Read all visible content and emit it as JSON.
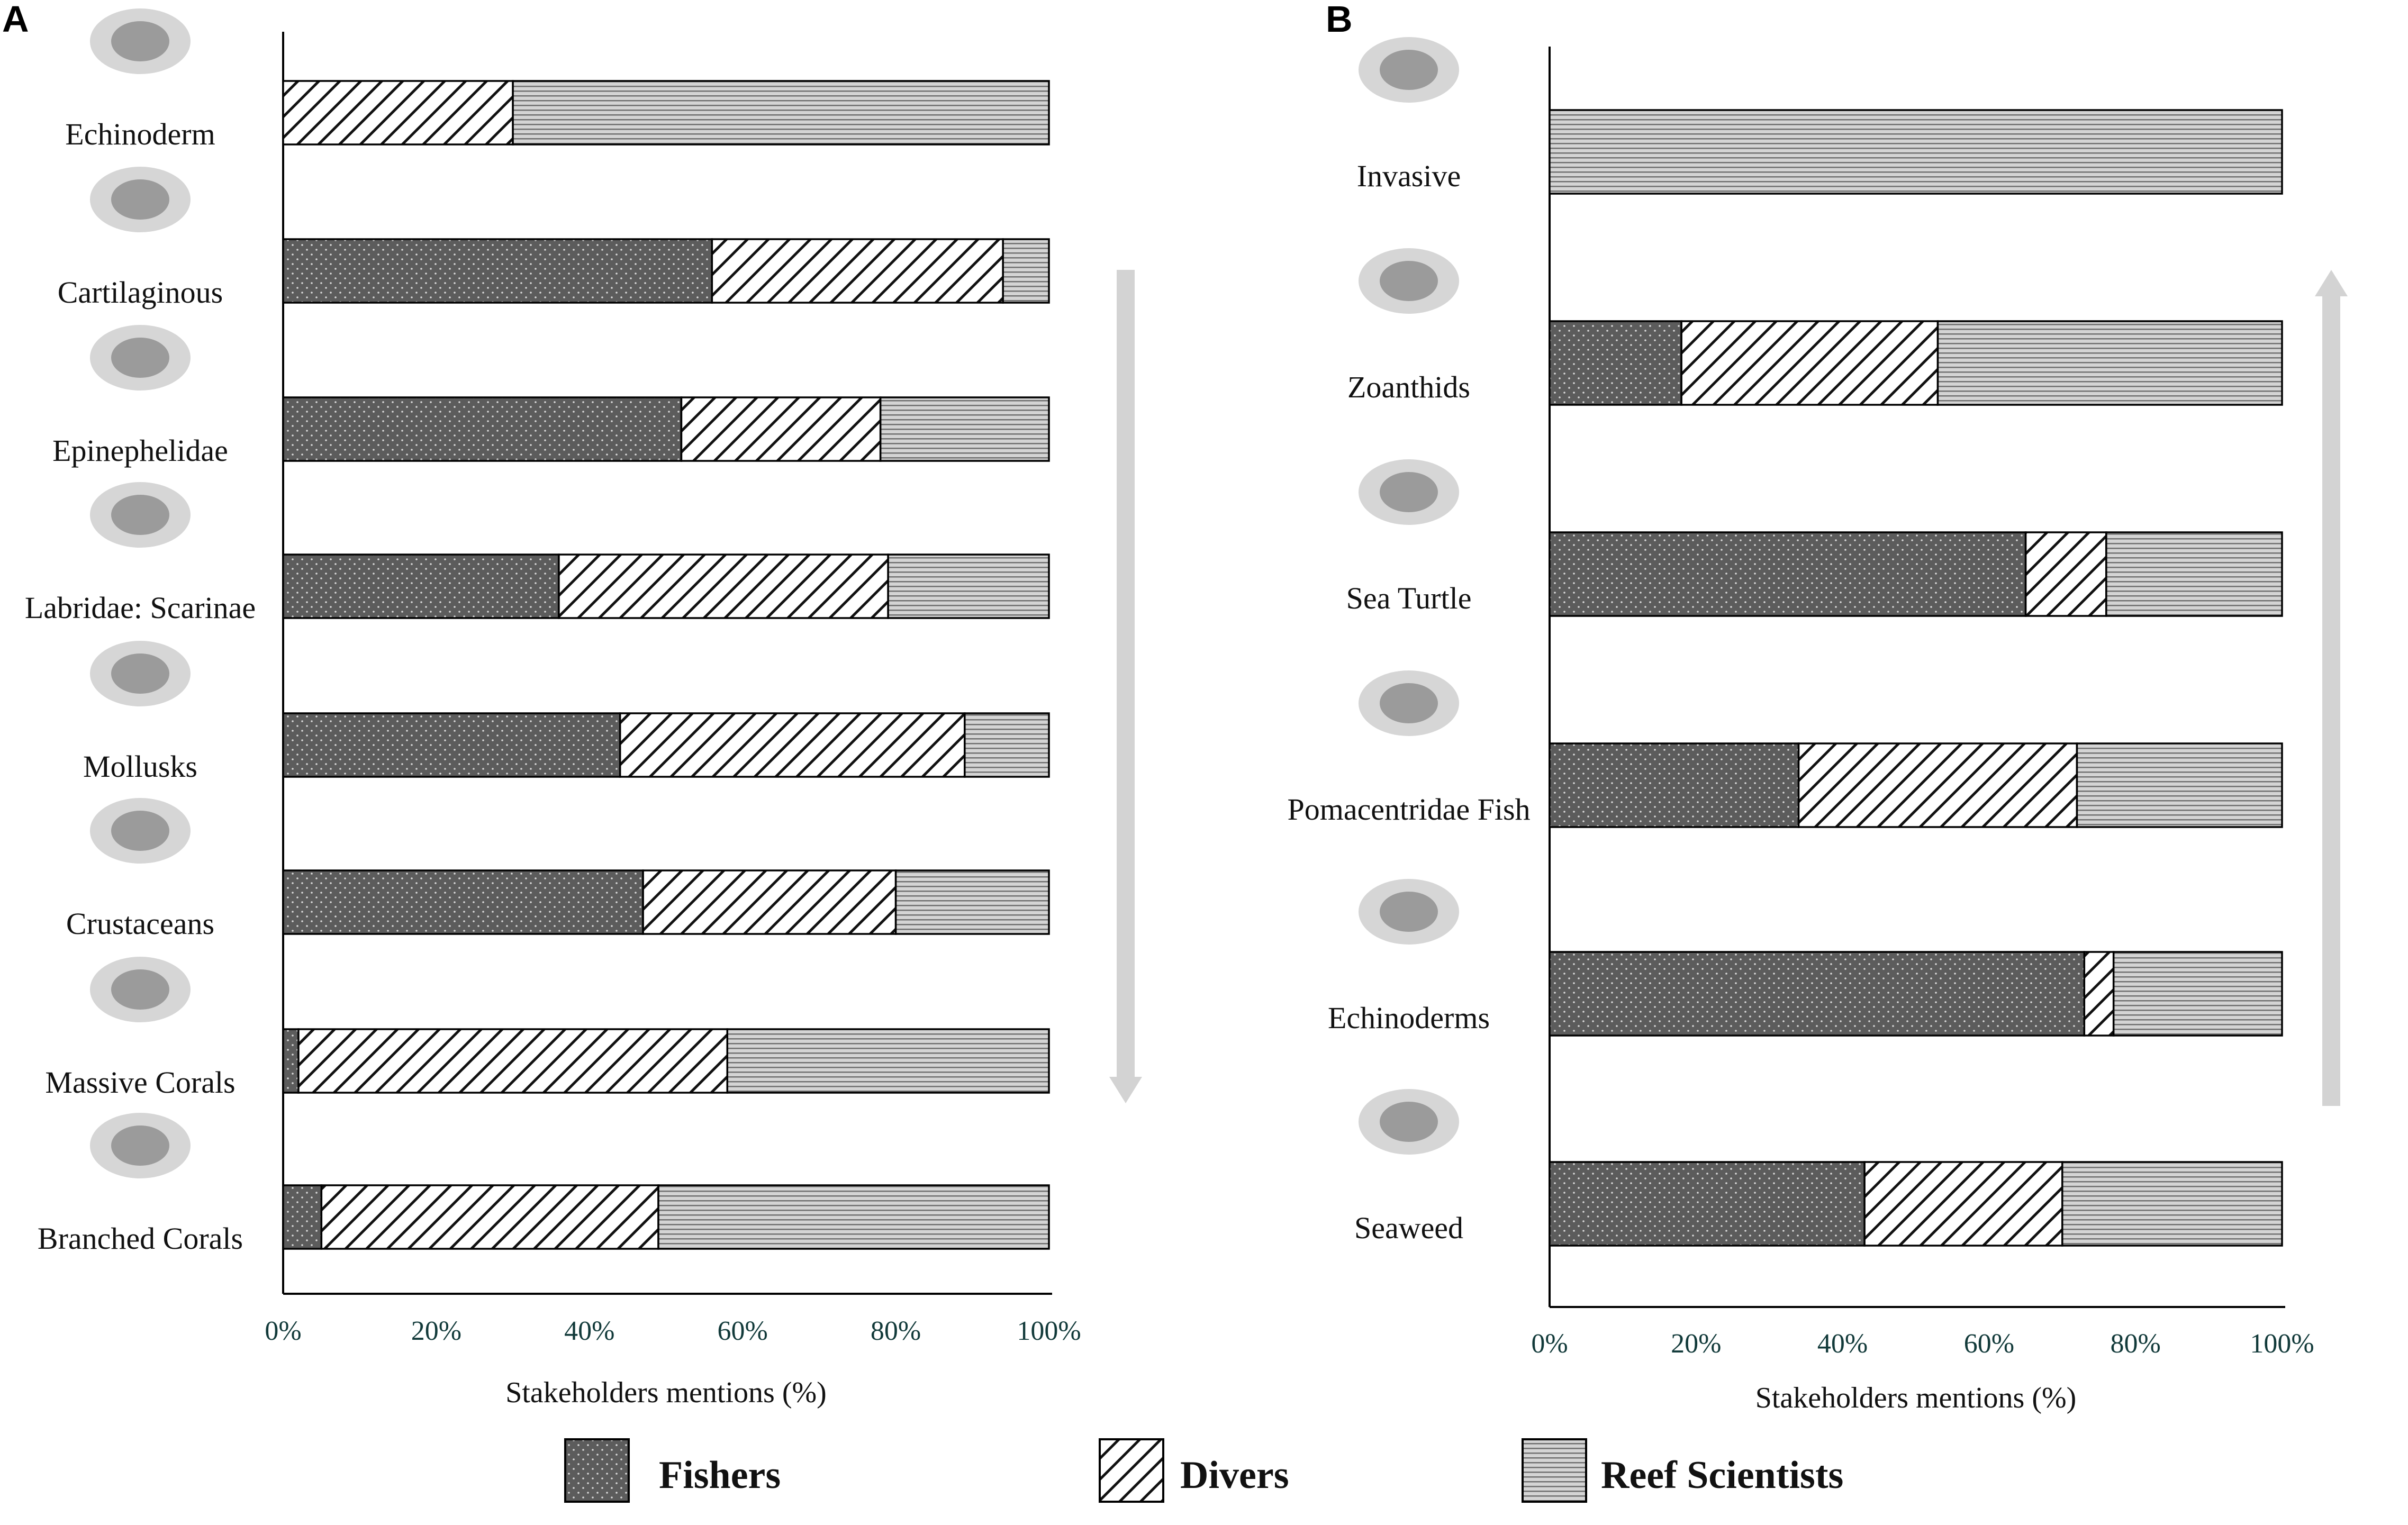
{
  "chart_data": [
    {
      "type": "bar",
      "stacked": true,
      "orientation": "horizontal",
      "panel_label": "A",
      "categories": [
        "Echinoderm",
        "Cartilaginous",
        "Epinephelidae",
        "Labridae: Scarinae",
        "Mollusks",
        "Crustaceans",
        "Massive Corals",
        "Branched Corals"
      ],
      "series": [
        {
          "name": "Fishers",
          "values": [
            0,
            56,
            52,
            36,
            44,
            47,
            2,
            5
          ]
        },
        {
          "name": "Divers",
          "values": [
            30,
            38,
            26,
            43,
            45,
            33,
            56,
            44
          ]
        },
        {
          "name": "Reef Scientists",
          "values": [
            70,
            6,
            22,
            21,
            11,
            20,
            42,
            51
          ]
        }
      ],
      "x_ticks": [
        "0%",
        "20%",
        "40%",
        "60%",
        "80%",
        "100%"
      ],
      "xlim": [
        0,
        100
      ],
      "xlabel": "Stakeholders mentions (%)",
      "arrow_direction": "down"
    },
    {
      "type": "bar",
      "stacked": true,
      "orientation": "horizontal",
      "panel_label": "B",
      "categories": [
        "Invasive",
        "Zoanthids",
        "Sea Turtle",
        "Pomacentridae Fish",
        "Echinoderms",
        "Seaweed"
      ],
      "series": [
        {
          "name": "Fishers",
          "values": [
            0,
            18,
            65,
            34,
            73,
            43
          ]
        },
        {
          "name": "Divers",
          "values": [
            0,
            35,
            11,
            38,
            4,
            27
          ]
        },
        {
          "name": "Reef Scientists",
          "values": [
            100,
            47,
            24,
            28,
            23,
            30
          ]
        }
      ],
      "x_ticks": [
        "0%",
        "20%",
        "40%",
        "60%",
        "80%",
        "100%"
      ],
      "xlim": [
        0,
        100
      ],
      "xlabel": "Stakeholders mentions (%)",
      "arrow_direction": "up"
    }
  ],
  "legend": [
    {
      "name": "Fishers",
      "pattern": "dots"
    },
    {
      "name": "Divers",
      "pattern": "diagonal"
    },
    {
      "name": "Reef Scientists",
      "pattern": "horizontal"
    }
  ],
  "colors": {
    "fishers_fill": "#5c5c5c",
    "divers_fill": "#ffffff",
    "scientists_fill": "#c8c8c8",
    "arrow": "#d3d3d3",
    "outline": "#000000"
  }
}
